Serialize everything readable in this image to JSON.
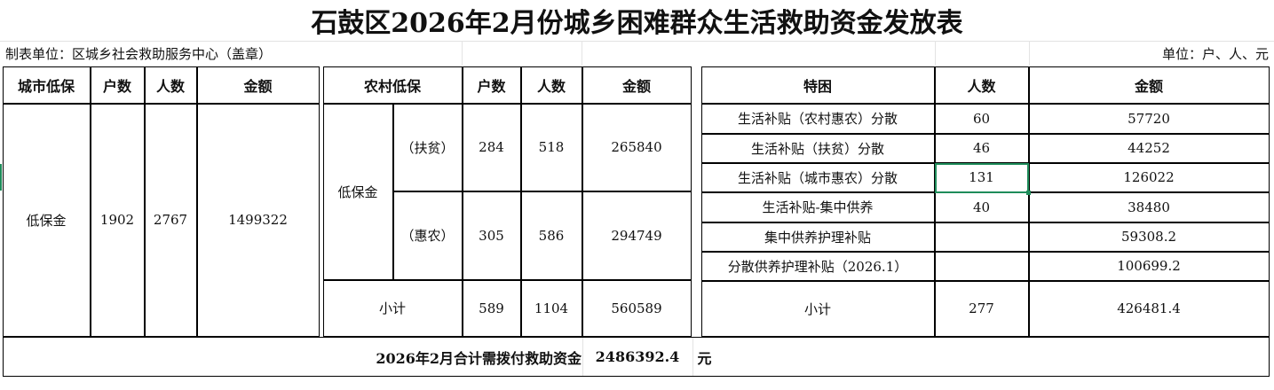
{
  "title": "石鼓区2026年2月份城乡困难群众生活救助资金发放表",
  "unit_left": "制表单位：区城乡社会救助服务中心（盖章）",
  "unit_right": "单位：户、人、元",
  "urban": {
    "headers": [
      "城市低保",
      "户数",
      "人数",
      "金额"
    ],
    "label": "低保金",
    "households": "1902",
    "people": "2767",
    "amount": "1499322"
  },
  "rural": {
    "headers": [
      "农村低保",
      "户数",
      "人数",
      "金额"
    ],
    "group": "低保金",
    "rows": [
      {
        "label": "（扶贫）",
        "households": "284",
        "people": "518",
        "amount": "265840"
      },
      {
        "label": "（惠农）",
        "households": "305",
        "people": "586",
        "amount": "294749"
      }
    ],
    "subtotal": {
      "label": "小计",
      "households": "589",
      "people": "1104",
      "amount": "560589"
    }
  },
  "special": {
    "headers": [
      "特困",
      "人数",
      "金额"
    ],
    "rows": [
      {
        "label": "生活补贴（农村惠农）分散",
        "people": "60",
        "amount": "57720"
      },
      {
        "label": "生活补贴（扶贫）分散",
        "people": "46",
        "amount": "44252"
      },
      {
        "label": "生活补贴（城市惠农）分散",
        "people": "131",
        "amount": "126022"
      },
      {
        "label": "生活补贴-集中供养",
        "people": "40",
        "amount": "38480"
      },
      {
        "label": "集中供养护理补贴",
        "people": "",
        "amount": "59308.2"
      },
      {
        "label": "分散供养护理补贴（2026.1）",
        "people": "",
        "amount": "100699.2"
      }
    ],
    "subtotal": {
      "label": "小计",
      "people": "277",
      "amount": "426481.4"
    }
  },
  "total": {
    "label": "2026年2月合计需拨付救助资金",
    "amount": "2486392.4",
    "unit": "元"
  },
  "colors": {
    "selection": "#1e8c5a"
  }
}
